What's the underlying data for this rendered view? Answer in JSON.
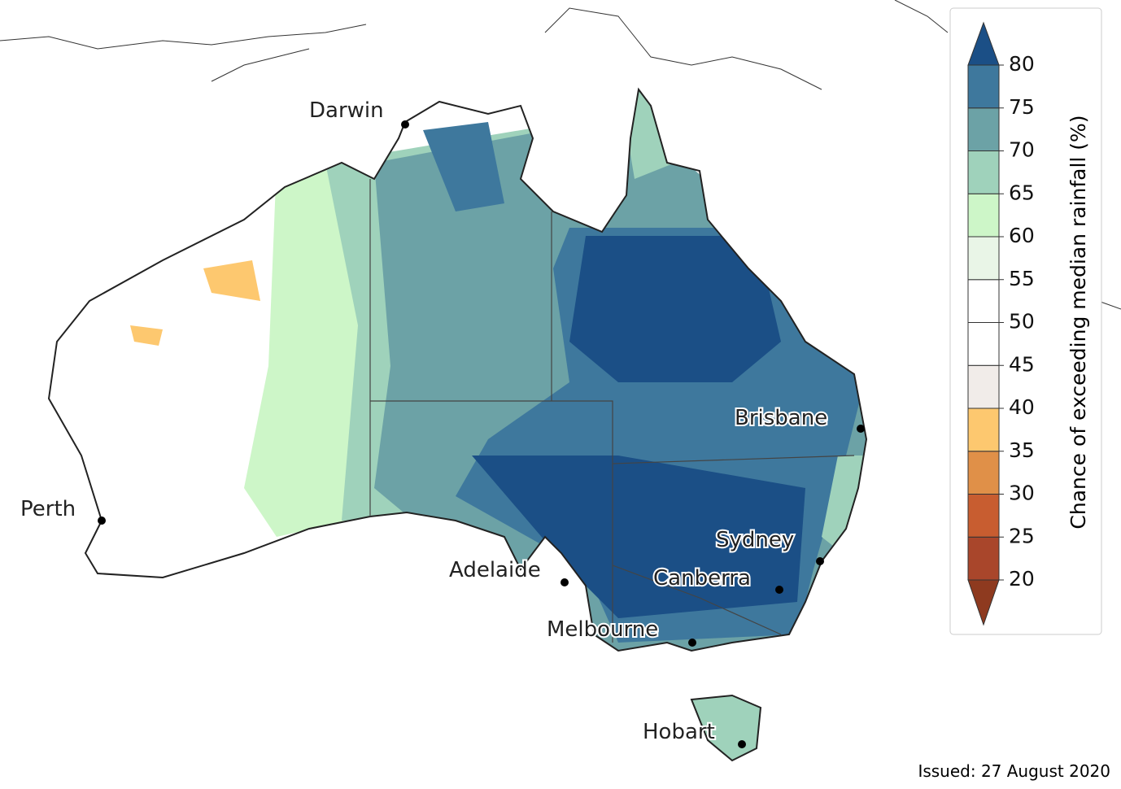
{
  "map": {
    "cities": [
      {
        "name": "Darwin"
      },
      {
        "name": "Brisbane"
      },
      {
        "name": "Perth"
      },
      {
        "name": "Sydney"
      },
      {
        "name": "Adelaide"
      },
      {
        "name": "Canberra"
      },
      {
        "name": "Melbourne"
      },
      {
        "name": "Hobart"
      }
    ]
  },
  "legend": {
    "title": "Chance of exceeding median rainfall (%)",
    "ticks": [
      20,
      25,
      30,
      35,
      40,
      45,
      50,
      55,
      60,
      65,
      70,
      75,
      80
    ],
    "under_color": "#8e3a1f",
    "over_color": "#1b4f86",
    "colors": [
      "#a9462b",
      "#c85d30",
      "#e09048",
      "#fdc86f",
      "#f1ece9",
      "#ffffff",
      "#ffffff",
      "#e9f5e7",
      "#cdf6c8",
      "#9fd2bb",
      "#6ca2a6",
      "#3e789d"
    ]
  },
  "issued": "Issued: 27 August 2020"
}
